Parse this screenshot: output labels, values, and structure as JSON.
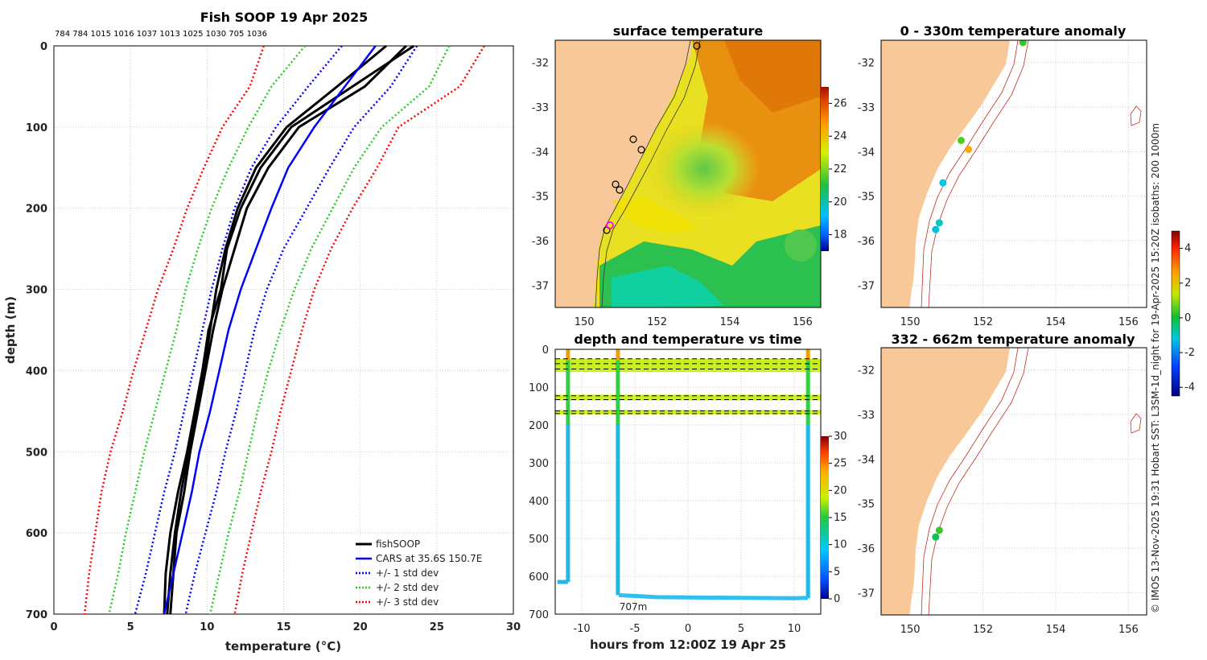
{
  "chart_data": [
    {
      "type": "line",
      "id": "profile",
      "title": "Fish SOOP 19 Apr 2025",
      "top_labels": "784 784 1015 1016 1037 1013 1025 1030 705 1036",
      "xlabel": "temperature (°C)",
      "ylabel": "depth (m)",
      "xlim": [
        0,
        30
      ],
      "ylim": [
        700,
        0
      ],
      "xticks": [
        "0",
        "5",
        "10",
        "15",
        "20",
        "25",
        "30"
      ],
      "yticks": [
        "0",
        "100",
        "200",
        "300",
        "400",
        "500",
        "600",
        "700"
      ],
      "legend": [
        "fishSOOP",
        "CARS at 35.6S 150.7E",
        "+/- 1 std dev",
        "+/- 2 std dev",
        "+/- 3 std dev"
      ],
      "legend_position": "bottom-right",
      "depth": [
        0,
        50,
        100,
        150,
        200,
        250,
        300,
        350,
        400,
        450,
        500,
        550,
        600,
        650,
        700
      ],
      "series": [
        {
          "name": "fishSOOP 1",
          "temperature": [
            21.7,
            18.5,
            15.2,
            13.2,
            12.0,
            11.2,
            10.6,
            10.2,
            9.8,
            9.3,
            8.8,
            8.3,
            7.9,
            7.6,
            7.4
          ]
        },
        {
          "name": "fishSOOP 2",
          "temperature": [
            23.5,
            19.5,
            15.5,
            13.5,
            12.2,
            11.3,
            10.9,
            10.1,
            9.7,
            9.2,
            8.7,
            8.1,
            7.6,
            7.3,
            7.2
          ]
        },
        {
          "name": "fishSOOP 3",
          "temperature": [
            23.0,
            20.3,
            16.0,
            14.0,
            12.6,
            11.8,
            11.0,
            10.4,
            9.9,
            9.4,
            8.9,
            8.5,
            8.0,
            7.8,
            7.6
          ]
        },
        {
          "name": "CARS",
          "temperature": [
            21.0,
            19.0,
            17.0,
            15.3,
            14.2,
            13.2,
            12.2,
            11.4,
            10.8,
            10.2,
            9.5,
            9.0,
            8.4,
            7.8,
            7.2
          ]
        },
        {
          "name": "+1 std",
          "temperature": [
            23.7,
            22.0,
            19.6,
            18.0,
            16.5,
            15.0,
            13.9,
            13.1,
            12.5,
            11.9,
            11.2,
            10.6,
            9.9,
            9.2,
            8.6
          ]
        },
        {
          "name": "-1 std",
          "temperature": [
            18.8,
            16.6,
            14.5,
            12.9,
            11.8,
            11.0,
            10.3,
            9.7,
            9.1,
            8.5,
            7.9,
            7.2,
            6.6,
            6.0,
            5.3
          ]
        },
        {
          "name": "+2 std",
          "temperature": [
            25.8,
            24.5,
            21.4,
            19.6,
            18.2,
            16.8,
            15.7,
            14.8,
            14.0,
            13.3,
            12.7,
            12.1,
            11.4,
            10.8,
            10.2
          ]
        },
        {
          "name": "-2 std",
          "temperature": [
            16.4,
            14.2,
            12.7,
            11.4,
            10.3,
            9.4,
            8.6,
            8.0,
            7.3,
            6.6,
            5.9,
            5.3,
            4.7,
            4.2,
            3.6
          ]
        },
        {
          "name": "+3 std",
          "temperature": [
            28.1,
            26.5,
            22.5,
            21.1,
            19.5,
            18.1,
            17.0,
            16.2,
            15.5,
            14.8,
            14.2,
            13.5,
            12.9,
            12.3,
            11.8
          ]
        },
        {
          "name": "-3 std",
          "temperature": [
            13.7,
            12.8,
            11.0,
            9.8,
            8.7,
            7.8,
            6.8,
            6.0,
            5.2,
            4.5,
            3.7,
            3.1,
            2.7,
            2.3,
            2.0
          ]
        }
      ]
    },
    {
      "type": "heatmap",
      "id": "sst_map",
      "title": "surface temperature",
      "xticks": [
        "150",
        "152",
        "154",
        "156"
      ],
      "yticks": [
        "-32",
        "-33",
        "-34",
        "-35",
        "-36",
        "-37"
      ],
      "xlim": [
        149.2,
        156.5
      ],
      "ylim": [
        -37.5,
        -31.5
      ],
      "colorbar_ticks": [
        "26",
        "24",
        "22",
        "20",
        "18"
      ],
      "colorbar_range": [
        17,
        27
      ]
    },
    {
      "type": "line",
      "id": "depth_time",
      "title": "depth and temperature vs time",
      "xlabel": "hours from 12:00Z 19 Apr 25",
      "xticks": [
        "-10",
        "-5",
        "0",
        "5",
        "10"
      ],
      "yticks": [
        "0",
        "100",
        "200",
        "300",
        "400",
        "500",
        "600",
        "700"
      ],
      "xlim": [
        -12.5,
        12.5
      ],
      "ylim": [
        700,
        0
      ],
      "annotation": "707m",
      "colorbar_ticks": [
        "30",
        "25",
        "20",
        "15",
        "10",
        "5",
        "0"
      ],
      "colorbar_range": [
        0,
        30
      ],
      "reference_depths": [
        25,
        38,
        52,
        123,
        133,
        163,
        170
      ],
      "bottom_track": {
        "hours": [
          -6.5,
          -5,
          -3,
          0,
          5,
          10,
          11.3
        ],
        "depth": [
          650,
          652,
          655,
          656,
          657,
          658,
          657
        ]
      }
    },
    {
      "type": "scatter",
      "id": "anomaly_shallow",
      "title": "0 - 330m temperature anomaly",
      "xticks": [
        "150",
        "152",
        "154",
        "156"
      ],
      "yticks": [
        "-32",
        "-33",
        "-34",
        "-35",
        "-36",
        "-37"
      ],
      "xlim": [
        149.2,
        156.5
      ],
      "ylim": [
        -37.5,
        -31.5
      ],
      "points": [
        {
          "lon": 153.1,
          "lat": -31.55,
          "anomaly": 0.3
        },
        {
          "lon": 151.4,
          "lat": -33.75,
          "anomaly": 0.5
        },
        {
          "lon": 151.6,
          "lat": -33.95,
          "anomaly": 2.5
        },
        {
          "lon": 150.9,
          "lat": -34.7,
          "anomaly": -1.2
        },
        {
          "lon": 150.8,
          "lat": -35.6,
          "anomaly": -1.0
        },
        {
          "lon": 150.7,
          "lat": -35.75,
          "anomaly": -1.3
        }
      ]
    },
    {
      "type": "scatter",
      "id": "anomaly_deep",
      "title": "332 - 662m temperature anomaly",
      "xticks": [
        "150",
        "152",
        "154",
        "156"
      ],
      "yticks": [
        "-32",
        "-33",
        "-34",
        "-35",
        "-36",
        "-37"
      ],
      "xlim": [
        149.2,
        156.5
      ],
      "ylim": [
        -37.5,
        -31.5
      ],
      "points": [
        {
          "lon": 150.8,
          "lat": -35.6,
          "anomaly": 0.3
        },
        {
          "lon": 150.7,
          "lat": -35.75,
          "anomaly": -0.3
        }
      ],
      "colorbar_ticks": [
        "4",
        "2",
        "0",
        "-2",
        "-4"
      ],
      "colorbar_range": [
        -4.5,
        5
      ]
    }
  ],
  "credit": "© IMOS 13-Nov-2025 19:31 Hobart SST: L3SM-1d_night for 19-Apr-2025 15:20Z isobaths: 200  1000m",
  "colors": {
    "land": "#f8c898",
    "grid": "#c8c8c8"
  }
}
